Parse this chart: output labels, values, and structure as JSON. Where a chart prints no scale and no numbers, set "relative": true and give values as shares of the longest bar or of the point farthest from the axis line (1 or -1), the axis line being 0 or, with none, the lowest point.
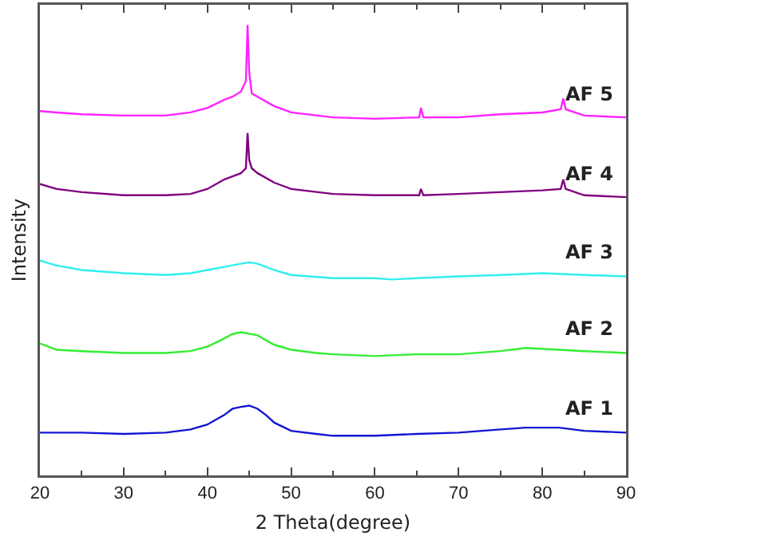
{
  "chart_data": {
    "type": "line",
    "relative": true,
    "xlabel": "2 Theta(degree)",
    "ylabel": "Intensity",
    "xlim": [
      20,
      90
    ],
    "xticks": [
      20,
      30,
      40,
      50,
      60,
      70,
      80,
      90
    ],
    "legend": false,
    "grid": false,
    "marker": "none",
    "line_style": "solid",
    "series": [
      {
        "name": "AF 1",
        "color": "#1414d2",
        "x": [
          20,
          25,
          30,
          35,
          38,
          40,
          42,
          43,
          44,
          45,
          46,
          47,
          48,
          50,
          53,
          55,
          60,
          65,
          70,
          75,
          78,
          82,
          85,
          90
        ],
        "values": [
          0.095,
          0.095,
          0.092,
          0.095,
          0.102,
          0.113,
          0.134,
          0.148,
          0.152,
          0.155,
          0.148,
          0.134,
          0.117,
          0.099,
          0.092,
          0.088,
          0.088,
          0.092,
          0.095,
          0.102,
          0.106,
          0.106,
          0.099,
          0.095
        ]
      },
      {
        "name": "AF 2",
        "color": "#33ee33",
        "x": [
          20,
          22,
          25,
          30,
          35,
          38,
          40,
          42,
          43,
          44,
          46,
          47,
          48,
          50,
          53,
          55,
          60,
          65,
          70,
          75,
          78,
          82,
          85,
          90
        ],
        "values": [
          0.293,
          0.279,
          0.276,
          0.272,
          0.272,
          0.276,
          0.286,
          0.304,
          0.314,
          0.318,
          0.311,
          0.3,
          0.29,
          0.279,
          0.272,
          0.269,
          0.265,
          0.269,
          0.269,
          0.276,
          0.283,
          0.279,
          0.276,
          0.272
        ]
      },
      {
        "name": "AF 3",
        "color": "#33eeee",
        "x": [
          20,
          22,
          25,
          30,
          35,
          38,
          40,
          42,
          44,
          45,
          46,
          48,
          50,
          55,
          60,
          62,
          65,
          70,
          75,
          80,
          85,
          90
        ],
        "values": [
          0.477,
          0.466,
          0.456,
          0.449,
          0.445,
          0.449,
          0.456,
          0.463,
          0.47,
          0.473,
          0.47,
          0.456,
          0.445,
          0.438,
          0.438,
          0.435,
          0.438,
          0.442,
          0.445,
          0.449,
          0.445,
          0.442
        ]
      },
      {
        "name": "AF 4",
        "color": "#800080",
        "x": [
          20,
          22,
          25,
          30,
          35,
          38,
          40,
          42,
          43,
          44,
          44.6,
          44.8,
          45,
          45.3,
          46,
          48,
          50,
          55,
          60,
          65.3,
          65.5,
          65.8,
          70,
          75,
          80,
          82.2,
          82.5,
          82.8,
          85,
          90
        ],
        "values": [
          0.647,
          0.636,
          0.629,
          0.622,
          0.622,
          0.625,
          0.636,
          0.657,
          0.664,
          0.671,
          0.682,
          0.76,
          0.7,
          0.682,
          0.671,
          0.65,
          0.636,
          0.625,
          0.622,
          0.622,
          0.636,
          0.622,
          0.625,
          0.629,
          0.633,
          0.636,
          0.657,
          0.636,
          0.622,
          0.618
        ]
      },
      {
        "name": "AF 5",
        "color": "#ff22ff",
        "x": [
          20,
          22,
          25,
          30,
          35,
          38,
          40,
          42,
          43,
          44,
          44.6,
          44.8,
          45,
          45.3,
          46,
          47,
          48,
          50,
          55,
          60,
          65.3,
          65.5,
          65.8,
          70,
          75,
          80,
          82.2,
          82.5,
          82.8,
          85,
          90
        ],
        "values": [
          0.809,
          0.806,
          0.802,
          0.799,
          0.799,
          0.806,
          0.816,
          0.834,
          0.841,
          0.852,
          0.876,
          1,
          0.894,
          0.848,
          0.841,
          0.83,
          0.82,
          0.806,
          0.795,
          0.792,
          0.795,
          0.816,
          0.795,
          0.795,
          0.802,
          0.806,
          0.813,
          0.837,
          0.813,
          0.799,
          0.795
        ]
      }
    ]
  }
}
